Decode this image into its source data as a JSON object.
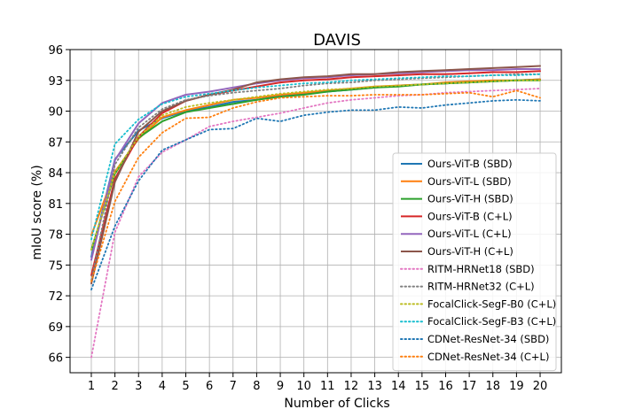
{
  "chart_data": {
    "type": "line",
    "title": "DAVIS",
    "xlabel": "Number of Clicks",
    "ylabel": "mIoU score (%)",
    "x": [
      1,
      2,
      3,
      4,
      5,
      6,
      7,
      8,
      9,
      10,
      11,
      12,
      13,
      14,
      15,
      16,
      17,
      18,
      19,
      20
    ],
    "xlim": [
      0.1,
      20.9
    ],
    "ylim": [
      64.5,
      96
    ],
    "yticks": [
      66,
      69,
      72,
      75,
      78,
      81,
      84,
      87,
      90,
      93,
      96
    ],
    "xticks": [
      1,
      2,
      3,
      4,
      5,
      6,
      7,
      8,
      9,
      10,
      11,
      12,
      13,
      14,
      15,
      16,
      17,
      18,
      19,
      20
    ],
    "grid": true,
    "legend_position": "lower-right",
    "series": [
      {
        "name": "Ours-ViT-B (SBD)",
        "color": "#1f77b4",
        "style": "solid",
        "values": [
          75.8,
          85.3,
          88.1,
          89.3,
          90.0,
          90.4,
          90.9,
          91.1,
          91.5,
          91.7,
          91.9,
          92.1,
          92.3,
          92.5,
          92.6,
          92.7,
          92.8,
          92.9,
          93.0,
          93.1
        ]
      },
      {
        "name": "Ours-ViT-L (SBD)",
        "color": "#ff7f0e",
        "style": "solid",
        "values": [
          77.9,
          84.1,
          87.3,
          89.4,
          90.1,
          90.6,
          91.1,
          91.3,
          91.6,
          91.8,
          92.0,
          92.2,
          92.4,
          92.5,
          92.6,
          92.8,
          92.9,
          93.0,
          93.0,
          93.1
        ]
      },
      {
        "name": "Ours-ViT-H (SBD)",
        "color": "#2ca02c",
        "style": "solid",
        "values": [
          76.5,
          83.9,
          87.4,
          89.0,
          89.9,
          90.3,
          90.7,
          91.1,
          91.4,
          91.6,
          91.9,
          92.1,
          92.3,
          92.4,
          92.6,
          92.7,
          92.8,
          92.9,
          93.0,
          93.0
        ]
      },
      {
        "name": "Ours-ViT-B (C+L)",
        "color": "#d62728",
        "style": "solid",
        "values": [
          74.0,
          83.4,
          87.5,
          89.8,
          91.0,
          91.6,
          92.0,
          92.4,
          92.8,
          93.0,
          93.1,
          93.3,
          93.4,
          93.5,
          93.6,
          93.6,
          93.7,
          93.8,
          93.8,
          93.9
        ]
      },
      {
        "name": "Ours-ViT-L (C+L)",
        "color": "#9467bd",
        "style": "solid",
        "values": [
          75.5,
          85.2,
          88.8,
          90.8,
          91.6,
          91.9,
          92.3,
          92.7,
          93.0,
          93.2,
          93.3,
          93.5,
          93.6,
          93.7,
          93.8,
          93.9,
          94.0,
          94.0,
          94.1,
          94.1
        ]
      },
      {
        "name": "Ours-ViT-H (C+L)",
        "color": "#8c564b",
        "style": "solid",
        "values": [
          73.2,
          83.1,
          88.0,
          90.0,
          91.0,
          91.6,
          92.1,
          92.8,
          93.1,
          93.3,
          93.4,
          93.6,
          93.6,
          93.8,
          93.9,
          94.0,
          94.1,
          94.2,
          94.3,
          94.4
        ]
      },
      {
        "name": "RITM-HRNet18 (SBD)",
        "color": "#e377c2",
        "style": "dotted",
        "values": [
          66.0,
          78.2,
          83.6,
          86.0,
          87.2,
          88.5,
          89.0,
          89.4,
          89.8,
          90.3,
          90.8,
          91.1,
          91.3,
          91.5,
          91.6,
          91.8,
          91.9,
          92.0,
          92.1,
          92.2
        ]
      },
      {
        "name": "RITM-HRNet32 (C+L)",
        "color": "#7f7f7f",
        "style": "dotted",
        "values": [
          73.5,
          84.8,
          88.4,
          90.2,
          91.1,
          91.5,
          91.8,
          92.0,
          92.2,
          92.5,
          92.7,
          92.8,
          93.0,
          93.1,
          93.2,
          93.3,
          93.4,
          93.5,
          93.6,
          93.6
        ]
      },
      {
        "name": "FocalClick-SegF-B0 (C+L)",
        "color": "#bcbd22",
        "style": "dotted",
        "values": [
          76.5,
          84.0,
          87.5,
          89.6,
          90.4,
          90.8,
          91.1,
          91.4,
          91.7,
          91.9,
          92.1,
          92.2,
          92.4,
          92.5,
          92.6,
          92.7,
          92.8,
          92.9,
          93.0,
          93.0
        ]
      },
      {
        "name": "FocalClick-SegF-B3 (C+L)",
        "color": "#17becf",
        "style": "dotted",
        "values": [
          77.5,
          86.8,
          89.2,
          90.7,
          91.4,
          91.7,
          92.0,
          92.3,
          92.5,
          92.7,
          92.8,
          93.0,
          93.1,
          93.2,
          93.3,
          93.4,
          93.4,
          93.5,
          93.5,
          93.6
        ]
      },
      {
        "name": "CDNet-ResNet-34 (SBD)",
        "color": "#1f77b4",
        "style": "dotted",
        "values": [
          72.6,
          78.8,
          83.2,
          86.2,
          87.2,
          88.2,
          88.3,
          89.3,
          89.0,
          89.6,
          89.9,
          90.1,
          90.1,
          90.4,
          90.3,
          90.6,
          90.8,
          91.0,
          91.1,
          91.0
        ]
      },
      {
        "name": "CDNet-ResNet-34 (C+L)",
        "color": "#ff7f0e",
        "style": "dotted",
        "values": [
          73.4,
          81.2,
          85.5,
          87.9,
          89.3,
          89.4,
          90.3,
          90.9,
          91.3,
          91.4,
          91.5,
          91.5,
          91.6,
          91.6,
          91.6,
          91.7,
          91.8,
          91.4,
          92.0,
          91.3
        ]
      }
    ]
  }
}
